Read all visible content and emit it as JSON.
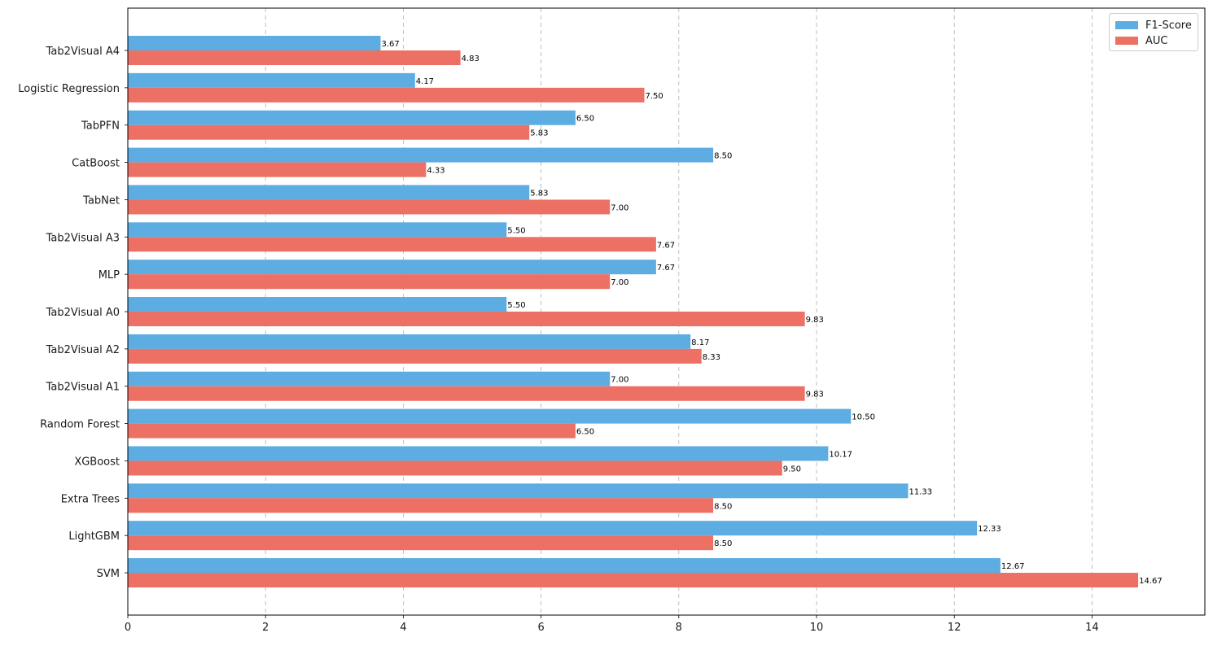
{
  "chart_data": {
    "type": "bar",
    "orientation": "horizontal",
    "categories": [
      "Tab2Visual A4",
      "Logistic Regression",
      "TabPFN",
      "CatBoost",
      "TabNet",
      "Tab2Visual A3",
      "MLP",
      "Tab2Visual A0",
      "Tab2Visual A2",
      "Tab2Visual A1",
      "Random Forest",
      "XGBoost",
      "Extra Trees",
      "LightGBM",
      "SVM"
    ],
    "series": [
      {
        "name": "F1-Score",
        "color": "#5DADE2",
        "values": [
          3.67,
          4.17,
          6.5,
          8.5,
          5.83,
          5.5,
          7.67,
          5.5,
          8.17,
          7.0,
          10.5,
          10.17,
          11.33,
          12.33,
          12.67
        ]
      },
      {
        "name": "AUC",
        "color": "#EC7063",
        "values": [
          4.83,
          7.5,
          5.83,
          4.33,
          7.0,
          7.67,
          7.0,
          9.83,
          8.33,
          9.83,
          6.5,
          9.5,
          8.5,
          8.5,
          14.67
        ]
      }
    ],
    "title": "",
    "xlabel": "",
    "ylabel": "",
    "xlim": [
      0,
      15.63
    ],
    "xticks": [
      0,
      2,
      4,
      6,
      8,
      10,
      12,
      14
    ],
    "grid": "x-dashed",
    "legend": "top-right"
  }
}
